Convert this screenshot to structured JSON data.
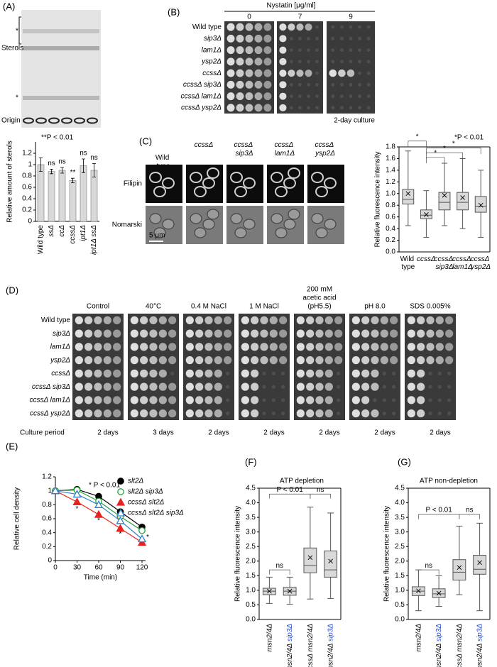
{
  "panels": {
    "A": {
      "label": "(A)",
      "gel_labels": [
        "*",
        "Sterols",
        "*",
        "Origin"
      ]
    },
    "B": {
      "label": "(B)",
      "header": "Nystatin [μg/ml]",
      "concentrations": [
        "0",
        "7",
        "9"
      ],
      "strains": [
        "Wild type",
        "sip3Δ",
        "lam1Δ",
        "ysp2Δ",
        "ccssΔ",
        "ccssΔ sip3Δ",
        "ccssΔ lam1Δ",
        "ccssΔ ysp2Δ"
      ],
      "note": "2-day culture"
    },
    "C": {
      "label": "(C)",
      "strains": [
        "Wild type",
        "ccssΔ",
        "ccssΔ sip3Δ",
        "ccssΔ lam1Δ",
        "ccssΔ ysp2Δ"
      ],
      "rows": [
        "Filipin",
        "Nomarski"
      ],
      "scale_bar": "5 μm"
    },
    "D": {
      "label": "(D)",
      "conditions": [
        [
          "Control"
        ],
        [
          "40°C"
        ],
        [
          "0.4 M NaCl"
        ],
        [
          "1 M NaCl"
        ],
        [
          "200 mM",
          "acetic acid",
          "(pH5.5)"
        ],
        [
          "pH 8.0"
        ],
        [
          "SDS 0.005%"
        ]
      ],
      "strains": [
        "Wild type",
        "sip3Δ",
        "lam1Δ",
        "ysp2Δ",
        "ccssΔ",
        "ccssΔ sip3Δ",
        "ccssΔ lam1Δ",
        "ccssΔ ysp2Δ"
      ],
      "period_label": "Culture period",
      "periods": [
        "2 days",
        "3 days",
        "2 days",
        "2 days",
        "2 days",
        "2 days",
        "2 days"
      ]
    },
    "E": {
      "label": "(E)"
    },
    "F": {
      "label": "(F)"
    },
    "G": {
      "label": "(G)"
    }
  },
  "chart_data": [
    {
      "type": "bar",
      "note": "**P < 0.01",
      "ylabel": "Relative amount of sterols",
      "categories": [
        "Wild type",
        "ssΔ",
        "ccΔ",
        "ccssΔ",
        "ipt1Δ",
        "ipt1Δ ssΔ"
      ],
      "values": [
        1.0,
        0.88,
        0.9,
        0.72,
        0.98,
        0.9
      ],
      "errors": [
        0.12,
        0.04,
        0.05,
        0.04,
        0.12,
        0.12
      ],
      "annotations": [
        null,
        "ns",
        "ns",
        "**",
        "ns",
        "ns"
      ],
      "color": "#d9d9d9",
      "ylim": [
        0,
        1.4
      ],
      "yticks": [
        0,
        0.2,
        0.4,
        0.6,
        0.8,
        1,
        1.2
      ]
    },
    {
      "type": "box",
      "note": "*P < 0.01",
      "ylabel": "Relative fluorescence intensity",
      "categories": [
        "Wild type",
        "ccssΔ",
        "ccssΔ sip3Δ",
        "ccssΔ lam1Δ",
        "ccssΔ ysp2Δ"
      ],
      "boxes": [
        {
          "min": 0.45,
          "q1": 0.82,
          "median": 0.9,
          "q3": 1.07,
          "max": 1.73,
          "mean": 1.0
        },
        {
          "min": 0.25,
          "q1": 0.57,
          "median": 0.63,
          "q3": 0.72,
          "max": 1.05,
          "mean": 0.64
        },
        {
          "min": 0.45,
          "q1": 0.72,
          "median": 0.85,
          "q3": 1.02,
          "max": 1.52,
          "mean": 0.97
        },
        {
          "min": 0.4,
          "q1": 0.72,
          "median": 0.85,
          "q3": 1.02,
          "max": 1.6,
          "mean": 0.93
        },
        {
          "min": 0.25,
          "q1": 0.68,
          "median": 0.78,
          "q3": 0.95,
          "max": 1.4,
          "mean": 0.8
        }
      ],
      "annotations": [
        "*",
        "*",
        "*",
        "*"
      ],
      "color": "#d9d9d9",
      "ylim": [
        0,
        1.8
      ],
      "yticks": [
        {
          "value": 0,
          "label": "0.0"
        },
        0.2,
        0.4,
        0.6,
        0.8,
        {
          "value": 1,
          "label": "1.0"
        },
        1.2,
        1.4,
        1.6,
        1.8
      ]
    },
    {
      "type": "line",
      "note": "* P < 0.01",
      "xlabel": "Time (min)",
      "ylabel": "Relative cell density",
      "x": [
        0,
        30,
        60,
        90,
        120
      ],
      "series": [
        {
          "name": "slt2Δ",
          "color": "#000000",
          "marker": "circle",
          "filled": true,
          "values": [
            1.0,
            1.02,
            0.92,
            0.7,
            0.48
          ]
        },
        {
          "name": "slt2Δ sip3Δ",
          "color": "#22a33a",
          "marker": "circle",
          "filled": false,
          "values": [
            1.0,
            1.01,
            0.85,
            0.63,
            0.43
          ]
        },
        {
          "name": "ccssΔ slt2Δ",
          "color": "#e8231f",
          "marker": "triangle",
          "filled": true,
          "values": [
            1.0,
            0.84,
            0.66,
            0.46,
            0.26
          ]
        },
        {
          "name": "ccssΔ slt2Δ sip3Δ",
          "color": "#2a7fd0",
          "marker": "triangle",
          "filled": false,
          "values": [
            1.0,
            0.95,
            0.8,
            0.57,
            0.31
          ]
        }
      ],
      "annotations": [
        "*",
        "*",
        "*",
        "*"
      ],
      "xlim": [
        0,
        120
      ],
      "xticks": [
        0,
        30,
        60,
        90,
        120
      ],
      "ylim": [
        0,
        1.2
      ],
      "yticks": [
        0,
        0.2,
        0.4,
        0.6,
        0.8,
        1,
        1.2
      ]
    },
    {
      "type": "box",
      "title": "ATP depletion",
      "ylabel": "Relative fluorescence intensity",
      "categories": [
        "msn2/4Δ",
        "msn2/4Δ sip3Δ",
        "ccssΔ msn2/4Δ",
        "ccssΔ msn2/4Δ sip3Δ"
      ],
      "boxes": [
        {
          "min": 0.55,
          "q1": 0.85,
          "median": 0.97,
          "q3": 1.07,
          "max": 1.45,
          "mean": 0.97
        },
        {
          "min": 0.52,
          "q1": 0.83,
          "median": 0.97,
          "q3": 1.1,
          "max": 1.45,
          "mean": 0.97
        },
        {
          "min": 0.7,
          "q1": 1.6,
          "median": 1.85,
          "q3": 2.45,
          "max": 3.85,
          "mean": 2.12
        },
        {
          "min": 0.72,
          "q1": 1.45,
          "median": 1.7,
          "q3": 2.35,
          "max": 3.65,
          "mean": 2.0
        }
      ],
      "annotations": [
        "ns",
        "P < 0.01",
        "ns"
      ],
      "color": "#d9d9d9",
      "ylim": [
        0,
        4.5
      ],
      "yticks": [
        {
          "value": 0,
          "label": "0.0"
        },
        0.5,
        {
          "value": 1,
          "label": "1.0"
        },
        1.5,
        {
          "value": 2,
          "label": "2.0"
        },
        2.5,
        {
          "value": 3,
          "label": "3.0"
        },
        3.5,
        {
          "value": 4,
          "label": "4.0"
        },
        4.5
      ]
    },
    {
      "type": "box",
      "title": "ATP non-depletion",
      "ylabel": "Relative fluorescence intensity",
      "categories": [
        "msn2/4Δ",
        "msn2/4Δ sip3Δ",
        "ccssΔ msn2/4Δ",
        "ccssΔ msn2/4Δ sip3Δ"
      ],
      "boxes": [
        {
          "min": 0.3,
          "q1": 0.82,
          "median": 0.97,
          "q3": 1.12,
          "max": 1.7,
          "mean": 0.98
        },
        {
          "min": 0.45,
          "q1": 0.75,
          "median": 0.88,
          "q3": 1.05,
          "max": 1.5,
          "mean": 0.9
        },
        {
          "min": 0.85,
          "q1": 1.35,
          "median": 1.62,
          "q3": 2.05,
          "max": 3.2,
          "mean": 1.78
        },
        {
          "min": 0.3,
          "q1": 1.55,
          "median": 1.72,
          "q3": 2.2,
          "max": 3.3,
          "mean": 1.95
        }
      ],
      "annotations": [
        "ns",
        "P < 0.01",
        "ns"
      ],
      "color": "#d9d9d9",
      "ylim": [
        0,
        4.5
      ],
      "yticks": [
        {
          "value": 0,
          "label": "0.0"
        },
        0.5,
        {
          "value": 1,
          "label": "1.0"
        },
        1.5,
        {
          "value": 2,
          "label": "2.0"
        },
        2.5,
        {
          "value": 3,
          "label": "3.0"
        },
        3.5,
        {
          "value": 4,
          "label": "4.0"
        },
        4.5
      ]
    }
  ]
}
